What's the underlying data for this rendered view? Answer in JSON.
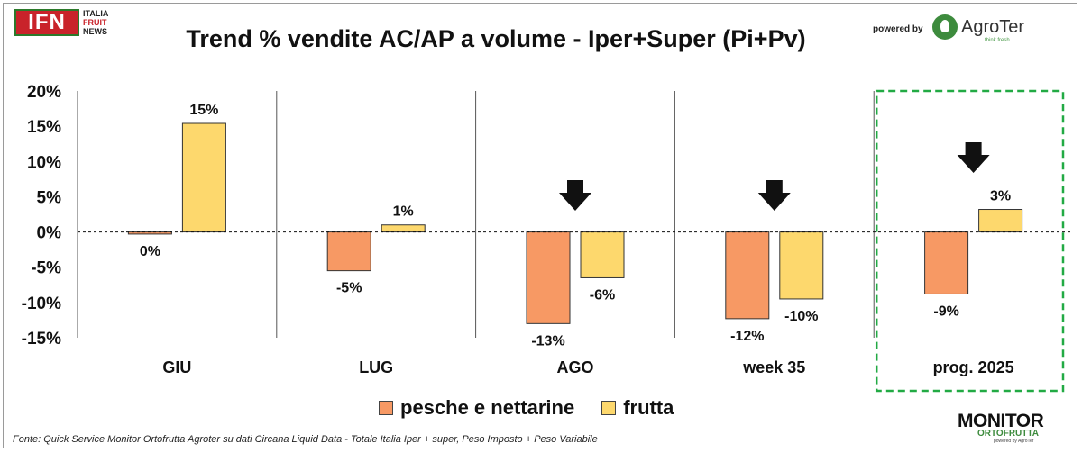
{
  "header": {
    "title": "Trend % vendite AC/AP a volume -  Iper+Super (Pi+Pv)",
    "ifn_logo": {
      "mark": "IFN",
      "line1": "ITALIA",
      "line2": "FRUIT",
      "line3": "NEWS"
    },
    "powered_by": "powered by",
    "agroter_logo": {
      "name": "AgroTer",
      "tagline": "think fresh"
    }
  },
  "footer": {
    "source": "Fonte: Quick Service Monitor Ortofrutta Agroter su dati Circana Liquid Data - Totale Italia Iper + super, Peso Imposto + Peso Variabile",
    "monitor_logo": {
      "big": "MONITOR",
      "small": "ORTOFRUTTA",
      "tiny": "powered by AgroTer"
    }
  },
  "colors": {
    "series1": "#f79964",
    "series2": "#fdd86d",
    "highlight_border": "#22aa44",
    "ifn_red": "#c9232a",
    "agroter_green": "#3d8b3d"
  },
  "chart_data": {
    "type": "bar",
    "title": "Trend % vendite AC/AP a volume -  Iper+Super (Pi+Pv)",
    "categories": [
      "GIU",
      "LUG",
      "AGO",
      "week 35",
      "prog. 2025"
    ],
    "series": [
      {
        "name": "pesche e nettarine",
        "values": [
          -0.3,
          -5.5,
          -13.0,
          -12.3,
          -8.8
        ],
        "labels": [
          "0%",
          "-5%",
          "-13%",
          "-12%",
          "-9%"
        ]
      },
      {
        "name": "frutta",
        "values": [
          15.4,
          1.0,
          -6.5,
          -9.5,
          3.2
        ],
        "labels": [
          "15%",
          "1%",
          "-6%",
          "-10%",
          "3%"
        ]
      }
    ],
    "ylim": [
      -15,
      20
    ],
    "yticks": [
      20,
      15,
      10,
      5,
      0,
      -5,
      -10,
      -15
    ],
    "ytick_labels": [
      "20%",
      "15%",
      "10%",
      "5%",
      "0%",
      "-5%",
      "-10%",
      "-15%"
    ],
    "down_arrows_on": [
      "AGO",
      "week 35",
      "prog. 2025"
    ],
    "highlighted_category": "prog. 2025",
    "zero_line": "dashed",
    "category_separators": true,
    "legend_position": "bottom"
  }
}
